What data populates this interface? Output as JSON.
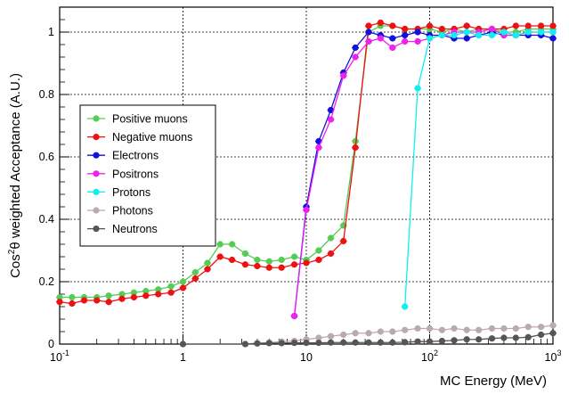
{
  "chart_data": {
    "type": "line",
    "title": "",
    "xlabel": "MC Energy (MeV)",
    "ylabel_prefix": "Cos",
    "ylabel_sup": "2",
    "ylabel_suffix": "θ weighted Acceptance (A.U.)",
    "x_scale": "log",
    "xlim": [
      0.1,
      1000
    ],
    "ylim": [
      0,
      1.08
    ],
    "grid": true,
    "legend_position": "left",
    "x_ticks": [
      {
        "value": 0.1,
        "base": "10",
        "exp": "-1"
      },
      {
        "value": 1,
        "base": "1",
        "exp": ""
      },
      {
        "value": 10,
        "base": "10",
        "exp": ""
      },
      {
        "value": 100,
        "base": "10",
        "exp": "2"
      },
      {
        "value": 1000,
        "base": "10",
        "exp": "3"
      }
    ],
    "y_ticks": [
      {
        "value": 0,
        "label": "0"
      },
      {
        "value": 0.2,
        "label": "0.2"
      },
      {
        "value": 0.4,
        "label": "0.4"
      },
      {
        "value": 0.6,
        "label": "0.6"
      },
      {
        "value": 0.8,
        "label": "0.8"
      },
      {
        "value": 1.0,
        "label": "1"
      }
    ],
    "series": [
      {
        "name": "Positive muons",
        "color": "#55cc55",
        "x": [
          0.1,
          0.126,
          0.158,
          0.2,
          0.25,
          0.32,
          0.4,
          0.5,
          0.63,
          0.8,
          1.0,
          1.26,
          1.58,
          2.0,
          2.5,
          3.2,
          4.0,
          5.0,
          6.3,
          8.0,
          10,
          12.6,
          15.8,
          20,
          25,
          32,
          40,
          50,
          63,
          80,
          100,
          126,
          158,
          200,
          250,
          320,
          400,
          500,
          630,
          800,
          1000
        ],
        "y": [
          0.15,
          0.15,
          0.15,
          0.15,
          0.155,
          0.16,
          0.165,
          0.17,
          0.175,
          0.185,
          0.2,
          0.23,
          0.26,
          0.32,
          0.32,
          0.29,
          0.27,
          0.265,
          0.27,
          0.28,
          0.27,
          0.3,
          0.34,
          0.38,
          0.65,
          1.0,
          1.02,
          1.02,
          1.01,
          1.01,
          1.01,
          1.0,
          1.01,
          1.0,
          1.01,
          1.01,
          1.0,
          1.0,
          1.01,
          1.01,
          1.01
        ]
      },
      {
        "name": "Negative muons",
        "color": "#ee1111",
        "x": [
          0.1,
          0.126,
          0.158,
          0.2,
          0.25,
          0.32,
          0.4,
          0.5,
          0.63,
          0.8,
          1.0,
          1.26,
          1.58,
          2.0,
          2.5,
          3.2,
          4.0,
          5.0,
          6.3,
          8.0,
          10,
          12.6,
          15.8,
          20,
          25,
          32,
          40,
          50,
          63,
          80,
          100,
          126,
          158,
          200,
          250,
          320,
          400,
          500,
          630,
          800,
          1000
        ],
        "y": [
          0.135,
          0.13,
          0.14,
          0.14,
          0.135,
          0.145,
          0.15,
          0.155,
          0.16,
          0.165,
          0.18,
          0.21,
          0.24,
          0.28,
          0.27,
          0.255,
          0.25,
          0.245,
          0.245,
          0.255,
          0.26,
          0.27,
          0.29,
          0.33,
          0.63,
          1.02,
          1.03,
          1.02,
          1.01,
          1.01,
          1.02,
          1.01,
          1.01,
          1.02,
          1.01,
          1.01,
          1.01,
          1.02,
          1.02,
          1.02,
          1.02
        ]
      },
      {
        "name": "Electrons",
        "color": "#1111dd",
        "x": [
          8.0,
          10,
          12.6,
          15.8,
          20,
          25,
          32,
          40,
          50,
          63,
          80,
          100,
          126,
          158,
          200,
          250,
          320,
          400,
          500,
          630,
          800,
          1000
        ],
        "y": [
          0.09,
          0.44,
          0.65,
          0.75,
          0.87,
          0.95,
          1.0,
          0.99,
          0.98,
          0.99,
          1.0,
          0.99,
          0.99,
          0.98,
          0.98,
          0.99,
          1.0,
          0.99,
          0.99,
          0.99,
          0.99,
          0.98
        ]
      },
      {
        "name": "Positrons",
        "color": "#ee22ee",
        "x": [
          8.0,
          10,
          12.6,
          15.8,
          20,
          25,
          32,
          40,
          50,
          63,
          80,
          100,
          126,
          158,
          200,
          250,
          320,
          400,
          500,
          630,
          800,
          1000
        ],
        "y": [
          0.09,
          0.43,
          0.63,
          0.72,
          0.86,
          0.92,
          0.97,
          0.98,
          0.95,
          0.97,
          0.97,
          0.98,
          0.99,
          1.0,
          1.0,
          1.0,
          1.01,
          0.99,
          0.99,
          1.0,
          1.0,
          1.0
        ]
      },
      {
        "name": "Protons",
        "color": "#11eeee",
        "x": [
          63,
          80,
          100,
          126,
          158,
          200,
          250,
          320,
          400,
          500,
          630,
          800,
          1000
        ],
        "y": [
          0.12,
          0.82,
          0.98,
          0.99,
          0.99,
          1.0,
          0.99,
          0.99,
          1.0,
          0.99,
          1.0,
          1.0,
          1.0
        ]
      },
      {
        "name": "Photons",
        "color": "#bbaaaa",
        "x": [
          1.0,
          3.2,
          4.0,
          5.0,
          6.3,
          8.0,
          10,
          12.6,
          15.8,
          20,
          25,
          32,
          40,
          50,
          63,
          80,
          100,
          126,
          158,
          200,
          250,
          320,
          400,
          500,
          630,
          800,
          1000
        ],
        "y": [
          0.0,
          0.0,
          0.003,
          0.005,
          0.008,
          0.01,
          0.015,
          0.02,
          0.025,
          0.03,
          0.035,
          0.035,
          0.04,
          0.04,
          0.045,
          0.05,
          0.05,
          0.045,
          0.05,
          0.045,
          0.045,
          0.05,
          0.05,
          0.05,
          0.055,
          0.055,
          0.06
        ]
      },
      {
        "name": "Neutrons",
        "color": "#555555",
        "x": [
          1.0,
          3.2,
          4.0,
          5.0,
          6.3,
          8.0,
          10,
          12.6,
          15.8,
          20,
          25,
          32,
          40,
          50,
          63,
          80,
          100,
          126,
          158,
          200,
          250,
          320,
          400,
          500,
          630,
          800,
          1000
        ],
        "y": [
          0.0,
          0.0,
          0.002,
          0.003,
          0.003,
          0.004,
          0.004,
          0.004,
          0.005,
          0.005,
          0.005,
          0.005,
          0.005,
          0.005,
          0.006,
          0.008,
          0.008,
          0.01,
          0.012,
          0.015,
          0.015,
          0.018,
          0.02,
          0.02,
          0.022,
          0.03,
          0.035
        ]
      }
    ]
  }
}
